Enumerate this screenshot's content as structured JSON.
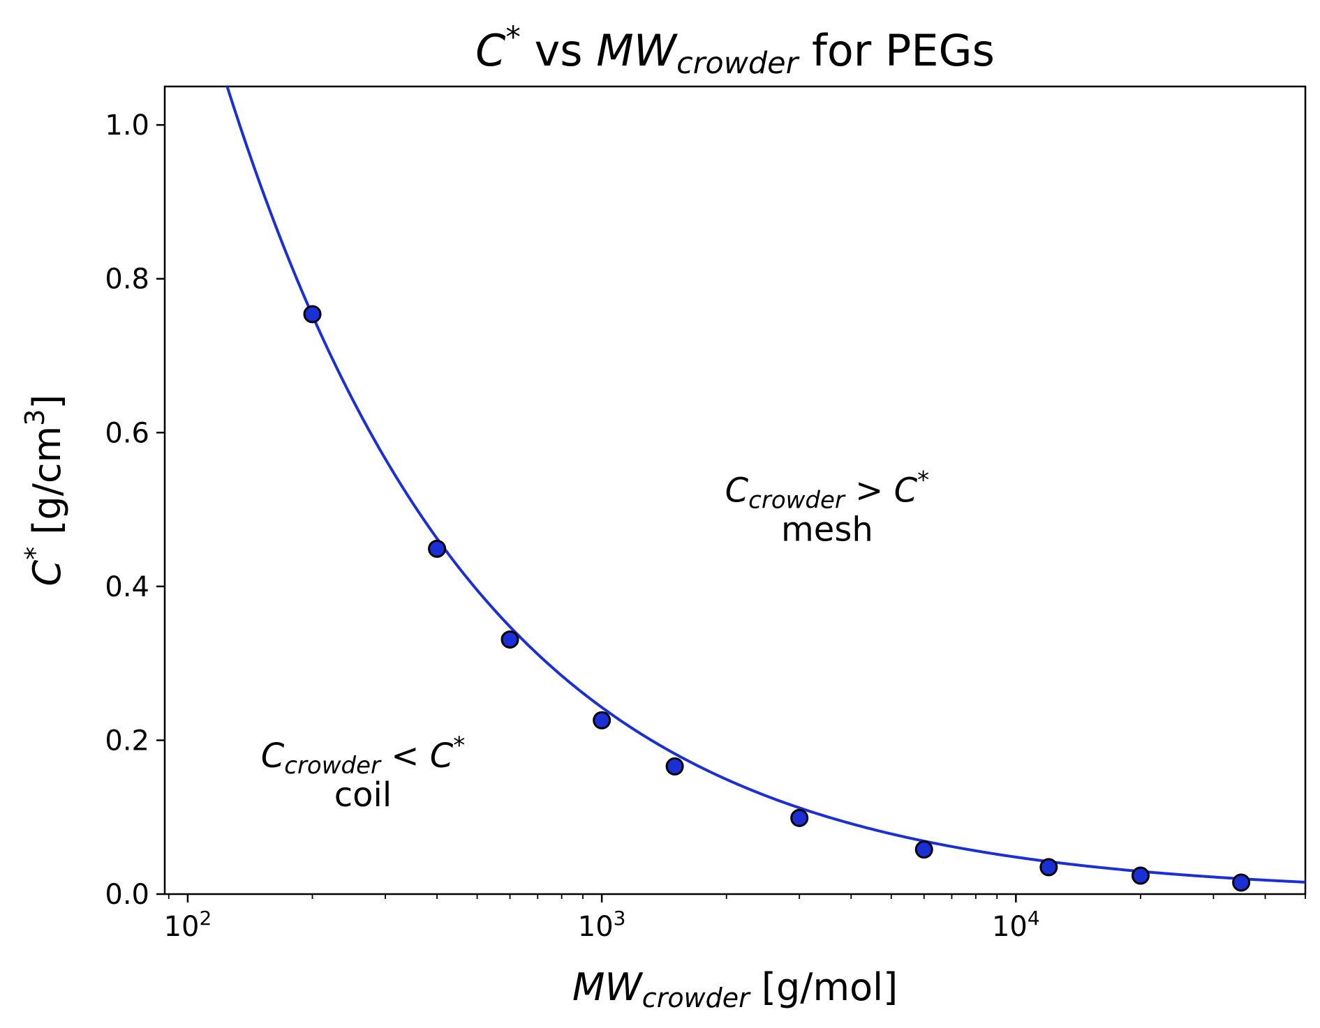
{
  "chart_data": {
    "type": "scatter",
    "title": {
      "parts": [
        {
          "text": "C",
          "style": "italic"
        },
        {
          "text": "*",
          "style": "sup"
        },
        {
          "text": " vs ",
          "style": "normal"
        },
        {
          "text": "MW",
          "style": "italic"
        },
        {
          "text": "crowder",
          "style": "sub-italic"
        },
        {
          "text": " for PEGs",
          "style": "normal"
        }
      ]
    },
    "xlabel": {
      "parts": [
        {
          "text": "MW",
          "style": "italic"
        },
        {
          "text": "crowder",
          "style": "sub-italic"
        },
        {
          "text": " [g/mol]",
          "style": "normal"
        }
      ]
    },
    "ylabel": {
      "parts": [
        {
          "text": "C",
          "style": "italic"
        },
        {
          "text": "*",
          "style": "sup"
        },
        {
          "text": " [g/cm",
          "style": "normal"
        },
        {
          "text": "3",
          "style": "sup"
        },
        {
          "text": "]",
          "style": "normal"
        }
      ]
    },
    "xscale": "log",
    "xlim": [
      88,
      50000
    ],
    "ylim": [
      0,
      1.05
    ],
    "xticks": [
      {
        "value": 100,
        "base": "10",
        "exp": "2"
      },
      {
        "value": 1000,
        "base": "10",
        "exp": "3"
      },
      {
        "value": 10000,
        "base": "10",
        "exp": "4"
      }
    ],
    "yticks": [
      {
        "value": 0.0,
        "label": "0.0"
      },
      {
        "value": 0.2,
        "label": "0.2"
      },
      {
        "value": 0.4,
        "label": "0.4"
      },
      {
        "value": 0.6,
        "label": "0.6"
      },
      {
        "value": 0.8,
        "label": "0.8"
      },
      {
        "value": 1.0,
        "label": "1.0"
      }
    ],
    "grid": false,
    "series": [
      {
        "kind": "points",
        "color": "#1a2fd6",
        "edgecolor": "#000000",
        "points": [
          {
            "x": 200,
            "y": 0.754
          },
          {
            "x": 400,
            "y": 0.449
          },
          {
            "x": 600,
            "y": 0.331
          },
          {
            "x": 1000,
            "y": 0.226
          },
          {
            "x": 1500,
            "y": 0.166
          },
          {
            "x": 3000,
            "y": 0.099
          },
          {
            "x": 6000,
            "y": 0.058
          },
          {
            "x": 12000,
            "y": 0.035
          },
          {
            "x": 20000,
            "y": 0.024
          },
          {
            "x": 35000,
            "y": 0.015
          }
        ]
      },
      {
        "kind": "fit-line",
        "color": "#1a2fd6",
        "model": "y = a * x^b",
        "a": 31.2,
        "b": -0.703
      }
    ],
    "annotations": [
      {
        "anchor_x": 3500,
        "anchor_y": 0.51,
        "line1": [
          {
            "text": "C",
            "style": "italic"
          },
          {
            "text": "crowder",
            "style": "sub-italic"
          },
          {
            "text": " > ",
            "style": "normal"
          },
          {
            "text": "C",
            "style": "italic"
          },
          {
            "text": "*",
            "style": "sup"
          }
        ],
        "line2": "mesh"
      },
      {
        "anchor_x": 265,
        "anchor_y": 0.165,
        "line1": [
          {
            "text": "C",
            "style": "italic"
          },
          {
            "text": "crowder",
            "style": "sub-italic"
          },
          {
            "text": " < ",
            "style": "normal"
          },
          {
            "text": "C",
            "style": "italic"
          },
          {
            "text": "*",
            "style": "sup"
          }
        ],
        "line2": "coil"
      }
    ]
  }
}
